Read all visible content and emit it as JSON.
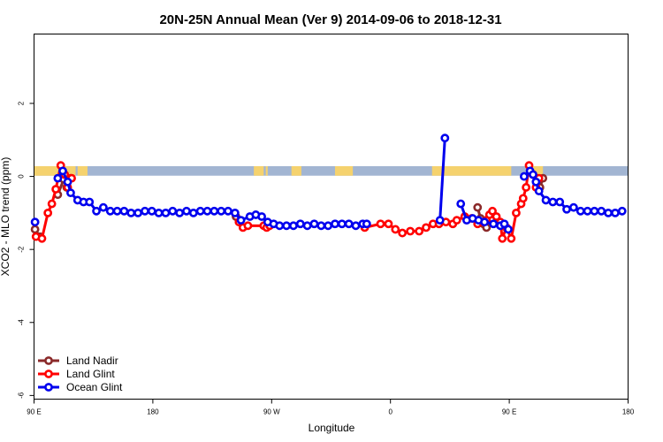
{
  "chart_data": {
    "type": "line",
    "title": "20N-25N Annual Mean (Ver 9)   2014-09-06 to 2018-12-31",
    "xlabel": "Longitude",
    "ylabel": "XCO2 - MLO trend (ppm)",
    "xlim": [
      -90,
      210
    ],
    "ylim": [
      -6.1,
      3.9
    ],
    "x_ticks": [
      {
        "value": -90,
        "label": "90 E"
      },
      {
        "value": -30,
        "label": "180"
      },
      {
        "value": 30,
        "label": "90 W"
      },
      {
        "value": 90,
        "label": "0"
      },
      {
        "value": 150,
        "label": "90 E"
      },
      {
        "value": 210,
        "label": "180"
      }
    ],
    "y_ticks": [
      {
        "value": -6,
        "label": "-6"
      },
      {
        "value": -4,
        "label": "-4"
      },
      {
        "value": -2,
        "label": "-2"
      },
      {
        "value": 0,
        "label": "0"
      },
      {
        "value": 2,
        "label": "2"
      }
    ],
    "land_ocean_band": {
      "y_range": [
        0.02,
        0.28
      ],
      "ocean_color": "#a2b5d2",
      "land_color": "#f5d26e",
      "land_segments": [
        [
          -90,
          -69
        ],
        [
          -63,
          -68
        ],
        [
          21,
          26
        ],
        [
          27,
          28
        ],
        [
          40,
          45
        ],
        [
          62,
          71
        ],
        [
          111,
          151
        ],
        [
          160,
          167
        ]
      ]
    },
    "series": [
      {
        "name": "Land Nadir",
        "color": "#8b2a2a",
        "segments": [
          [
            [
              -89.5,
              -1.45
            ],
            [
              -87,
              -1.65
            ]
          ],
          [
            [
              -78,
              -0.5
            ],
            [
              -75,
              -0.08
            ],
            [
              -73.5,
              -0.3
            ],
            [
              -71.5,
              -0.05
            ]
          ],
          [
            [
              12,
              -1.1
            ]
          ],
          [
            [
              134,
              -0.85
            ],
            [
              135.5,
              -1.15
            ],
            [
              137,
              -1.3
            ],
            [
              138.5,
              -1.4
            ]
          ],
          [
            [
              164,
              -0.1
            ],
            [
              165.5,
              -0.3
            ],
            [
              167,
              -0.05
            ]
          ]
        ]
      },
      {
        "name": "Land Glint",
        "color": "#ff0000",
        "segments": [
          [
            [
              -89,
              -1.65
            ],
            [
              -86,
              -1.7
            ],
            [
              -83,
              -1
            ],
            [
              -81,
              -0.75
            ],
            [
              -79,
              -0.35
            ],
            [
              -76.5,
              0.3
            ],
            [
              -74.5,
              0.05
            ],
            [
              -73,
              -0.3
            ],
            [
              -71,
              -0.05
            ]
          ],
          [
            [
              13.5,
              -1.25
            ],
            [
              15.5,
              -1.4
            ],
            [
              18,
              -1.35
            ],
            [
              26,
              -1.35
            ],
            [
              27.5,
              -1.4
            ],
            [
              29,
              -1.35
            ]
          ],
          [
            [
              77,
              -1.4
            ],
            [
              85,
              -1.3
            ],
            [
              89,
              -1.3
            ],
            [
              92.5,
              -1.45
            ],
            [
              96,
              -1.55
            ],
            [
              100,
              -1.5
            ],
            [
              104.5,
              -1.5
            ],
            [
              108,
              -1.4
            ],
            [
              111.5,
              -1.3
            ],
            [
              114.5,
              -1.3
            ],
            [
              118,
              -1.25
            ],
            [
              121.5,
              -1.3
            ],
            [
              123.5,
              -1.2
            ],
            [
              127.5,
              -1.1
            ],
            [
              131,
              -1.15
            ],
            [
              134,
              -1.3
            ],
            [
              137,
              -1.25
            ],
            [
              138.5,
              -1.2
            ],
            [
              140,
              -1.05
            ],
            [
              141.5,
              -0.95
            ],
            [
              143.5,
              -1.1
            ],
            [
              145.5,
              -1.25
            ],
            [
              146.5,
              -1.7
            ],
            [
              148.5,
              -1.4
            ],
            [
              151,
              -1.7
            ],
            [
              153.5,
              -1
            ],
            [
              156,
              -0.75
            ],
            [
              157,
              -0.6
            ],
            [
              158.5,
              -0.3
            ],
            [
              160,
              0.3
            ],
            [
              162,
              0.05
            ],
            [
              163.5,
              -0.3
            ],
            [
              165,
              -0.05
            ]
          ]
        ]
      },
      {
        "name": "Ocean Glint",
        "color": "#0000ee",
        "segments": [
          [
            [
              -89.5,
              -1.25
            ]
          ],
          [
            [
              -78,
              -0.05
            ],
            [
              -75.5,
              0.15
            ],
            [
              -73,
              -0.15
            ],
            [
              -71.5,
              -0.45
            ],
            [
              -68,
              -0.65
            ],
            [
              -65,
              -0.7
            ],
            [
              -62,
              -0.7
            ],
            [
              -58.5,
              -0.95
            ],
            [
              -55,
              -0.85
            ],
            [
              -51.5,
              -0.95
            ],
            [
              -48,
              -0.95
            ],
            [
              -44.5,
              -0.95
            ],
            [
              -41,
              -1
            ],
            [
              -37.5,
              -1
            ],
            [
              -34,
              -0.95
            ],
            [
              -30.5,
              -0.95
            ],
            [
              -27,
              -1
            ],
            [
              -23.5,
              -1
            ],
            [
              -20,
              -0.95
            ],
            [
              -16.5,
              -1
            ],
            [
              -13,
              -0.95
            ],
            [
              -9.5,
              -1
            ],
            [
              -6,
              -0.95
            ],
            [
              -2.5,
              -0.95
            ],
            [
              1,
              -0.95
            ],
            [
              4.5,
              -0.95
            ],
            [
              8,
              -0.95
            ],
            [
              11.5,
              -1
            ],
            [
              14.5,
              -1.2
            ],
            [
              19,
              -1.1
            ],
            [
              22,
              -1.05
            ],
            [
              25,
              -1.1
            ],
            [
              28,
              -1.25
            ],
            [
              31,
              -1.3
            ],
            [
              34,
              -1.35
            ],
            [
              37.5,
              -1.35
            ],
            [
              41,
              -1.35
            ],
            [
              44.5,
              -1.3
            ],
            [
              48,
              -1.35
            ],
            [
              51.5,
              -1.3
            ],
            [
              55,
              -1.35
            ],
            [
              58.5,
              -1.35
            ],
            [
              62,
              -1.3
            ],
            [
              65.5,
              -1.3
            ],
            [
              69,
              -1.3
            ],
            [
              72.5,
              -1.35
            ],
            [
              76,
              -1.3
            ],
            [
              78,
              -1.3
            ]
          ],
          [
            [
              115,
              -1.2
            ],
            [
              117.5,
              1.05
            ]
          ],
          [
            [
              125.5,
              -0.75
            ],
            [
              128.5,
              -1.2
            ],
            [
              131.5,
              -1.15
            ],
            [
              134.5,
              -1.2
            ],
            [
              137.5,
              -1.25
            ],
            [
              142,
              -1.3
            ],
            [
              145.5,
              -1.35
            ],
            [
              147.5,
              -1.3
            ],
            [
              149.5,
              -1.45
            ]
          ],
          [
            [
              157.5,
              0
            ],
            [
              160.5,
              0.15
            ],
            [
              162,
              0.05
            ],
            [
              163.5,
              -0.15
            ],
            [
              165,
              -0.4
            ],
            [
              168.5,
              -0.65
            ],
            [
              172,
              -0.7
            ],
            [
              175.5,
              -0.7
            ],
            [
              179,
              -0.9
            ],
            [
              182.5,
              -0.85
            ],
            [
              186,
              -0.95
            ],
            [
              189.5,
              -0.95
            ],
            [
              193,
              -0.95
            ],
            [
              196.5,
              -0.95
            ],
            [
              200,
              -1
            ],
            [
              203.5,
              -1
            ],
            [
              207,
              -0.95
            ]
          ]
        ]
      }
    ],
    "legend_position": "bottom-left",
    "grid": false
  }
}
